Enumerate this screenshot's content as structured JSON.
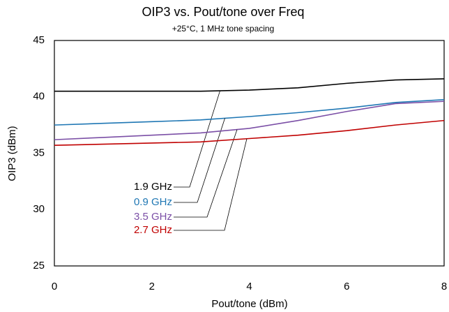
{
  "chart_data": {
    "type": "line",
    "title": "OIP3 vs. Pout/tone over Freq",
    "subtitle": "+25°C, 1 MHz tone spacing",
    "x_label": "Pout/tone (dBm)",
    "y_label": "OIP3 (dBm)",
    "x": [
      0,
      1,
      2,
      3,
      4,
      5,
      6,
      7,
      8
    ],
    "series": [
      {
        "name": "1.9 GHz",
        "color": "#000000",
        "values": [
          40.5,
          40.5,
          40.5,
          40.5,
          40.6,
          40.8,
          41.2,
          41.5,
          41.6
        ]
      },
      {
        "name": "0.9 GHz",
        "color": "#1f77b4",
        "values": [
          37.5,
          37.65,
          37.8,
          37.95,
          38.25,
          38.6,
          39.0,
          39.5,
          39.75
        ]
      },
      {
        "name": "3.5 GHz",
        "color": "#7b4fa6",
        "values": [
          36.2,
          36.4,
          36.6,
          36.8,
          37.2,
          37.9,
          38.7,
          39.4,
          39.6
        ]
      },
      {
        "name": "2.7 GHz",
        "color": "#c00000",
        "values": [
          35.7,
          35.8,
          35.9,
          36.0,
          36.3,
          36.6,
          37.0,
          37.5,
          37.9
        ]
      }
    ],
    "xlim": [
      0,
      8
    ],
    "xticks": [
      0,
      2,
      4,
      6,
      8
    ],
    "ylim": [
      25,
      45
    ],
    "yticks": [
      25,
      30,
      35,
      40,
      45
    ],
    "grid": false
  }
}
